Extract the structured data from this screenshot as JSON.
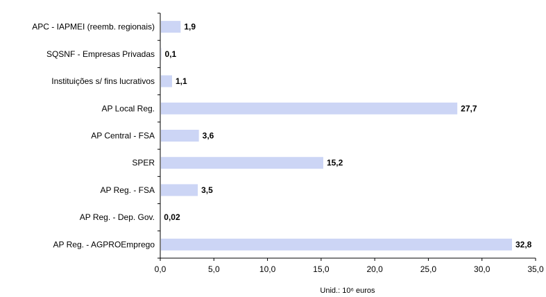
{
  "chart_data": {
    "type": "bar",
    "orientation": "horizontal",
    "categories": [
      "APC - IAPMEI (reemb. regionais)",
      "SQSNF - Empresas Privadas",
      "Instituições s/ fins lucrativos",
      "AP Local Reg.",
      "AP Central - FSA",
      "SPER",
      "AP Reg. - FSA",
      "AP Reg. - Dep. Gov.",
      "AP Reg. - AGPROEmprego"
    ],
    "values": [
      1.9,
      0.1,
      1.1,
      27.7,
      3.6,
      15.2,
      3.5,
      0.02,
      32.8
    ],
    "value_labels": [
      "1,9",
      "0,1",
      "1,1",
      "27,7",
      "3,6",
      "15,2",
      "3,5",
      "0,02",
      "32,8"
    ],
    "xlim": [
      0,
      35
    ],
    "x_ticks": [
      "0,0",
      "5,0",
      "10,0",
      "15,0",
      "20,0",
      "25,0",
      "30,0",
      "35,0"
    ],
    "xlabel": "Unid.: 10⁶ euros",
    "grid": false,
    "colors": {
      "bar": "#ccd5f5",
      "axis": "#000000"
    }
  }
}
